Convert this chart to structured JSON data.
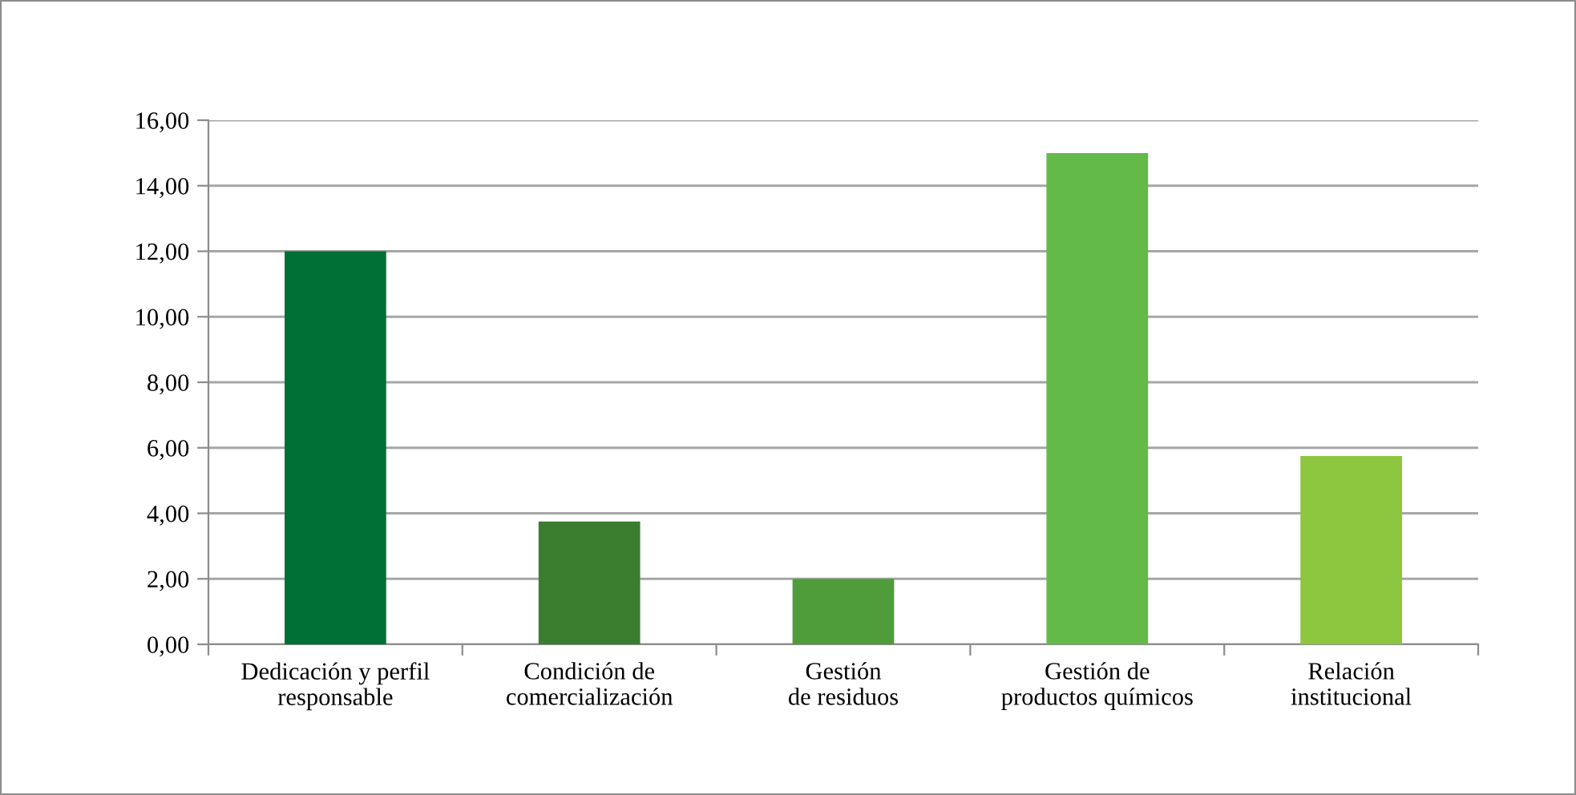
{
  "chart_data": {
    "type": "bar",
    "categories": [
      "Dedicación y perfil\nresponsable",
      "Condición de\ncomercialización",
      "Gestión\nde residuos",
      "Gestión de\nproductos químicos",
      "Relación\ninstitucional"
    ],
    "values": [
      12.0,
      3.75,
      2.0,
      15.0,
      5.75
    ],
    "colors": [
      "#007036",
      "#3a7d2e",
      "#4f9c3a",
      "#63ba48",
      "#8dc63f"
    ],
    "ylim": [
      0,
      16
    ],
    "yticks": [
      {
        "value": 0,
        "label": "0,00"
      },
      {
        "value": 2,
        "label": "2,00"
      },
      {
        "value": 4,
        "label": "4,00"
      },
      {
        "value": 6,
        "label": "6,00"
      },
      {
        "value": 8,
        "label": "8,00"
      },
      {
        "value": 10,
        "label": "10,00"
      },
      {
        "value": 12,
        "label": "12,00"
      },
      {
        "value": 14,
        "label": "14,00"
      },
      {
        "value": 16,
        "label": "16,00"
      }
    ],
    "grid": "y"
  }
}
